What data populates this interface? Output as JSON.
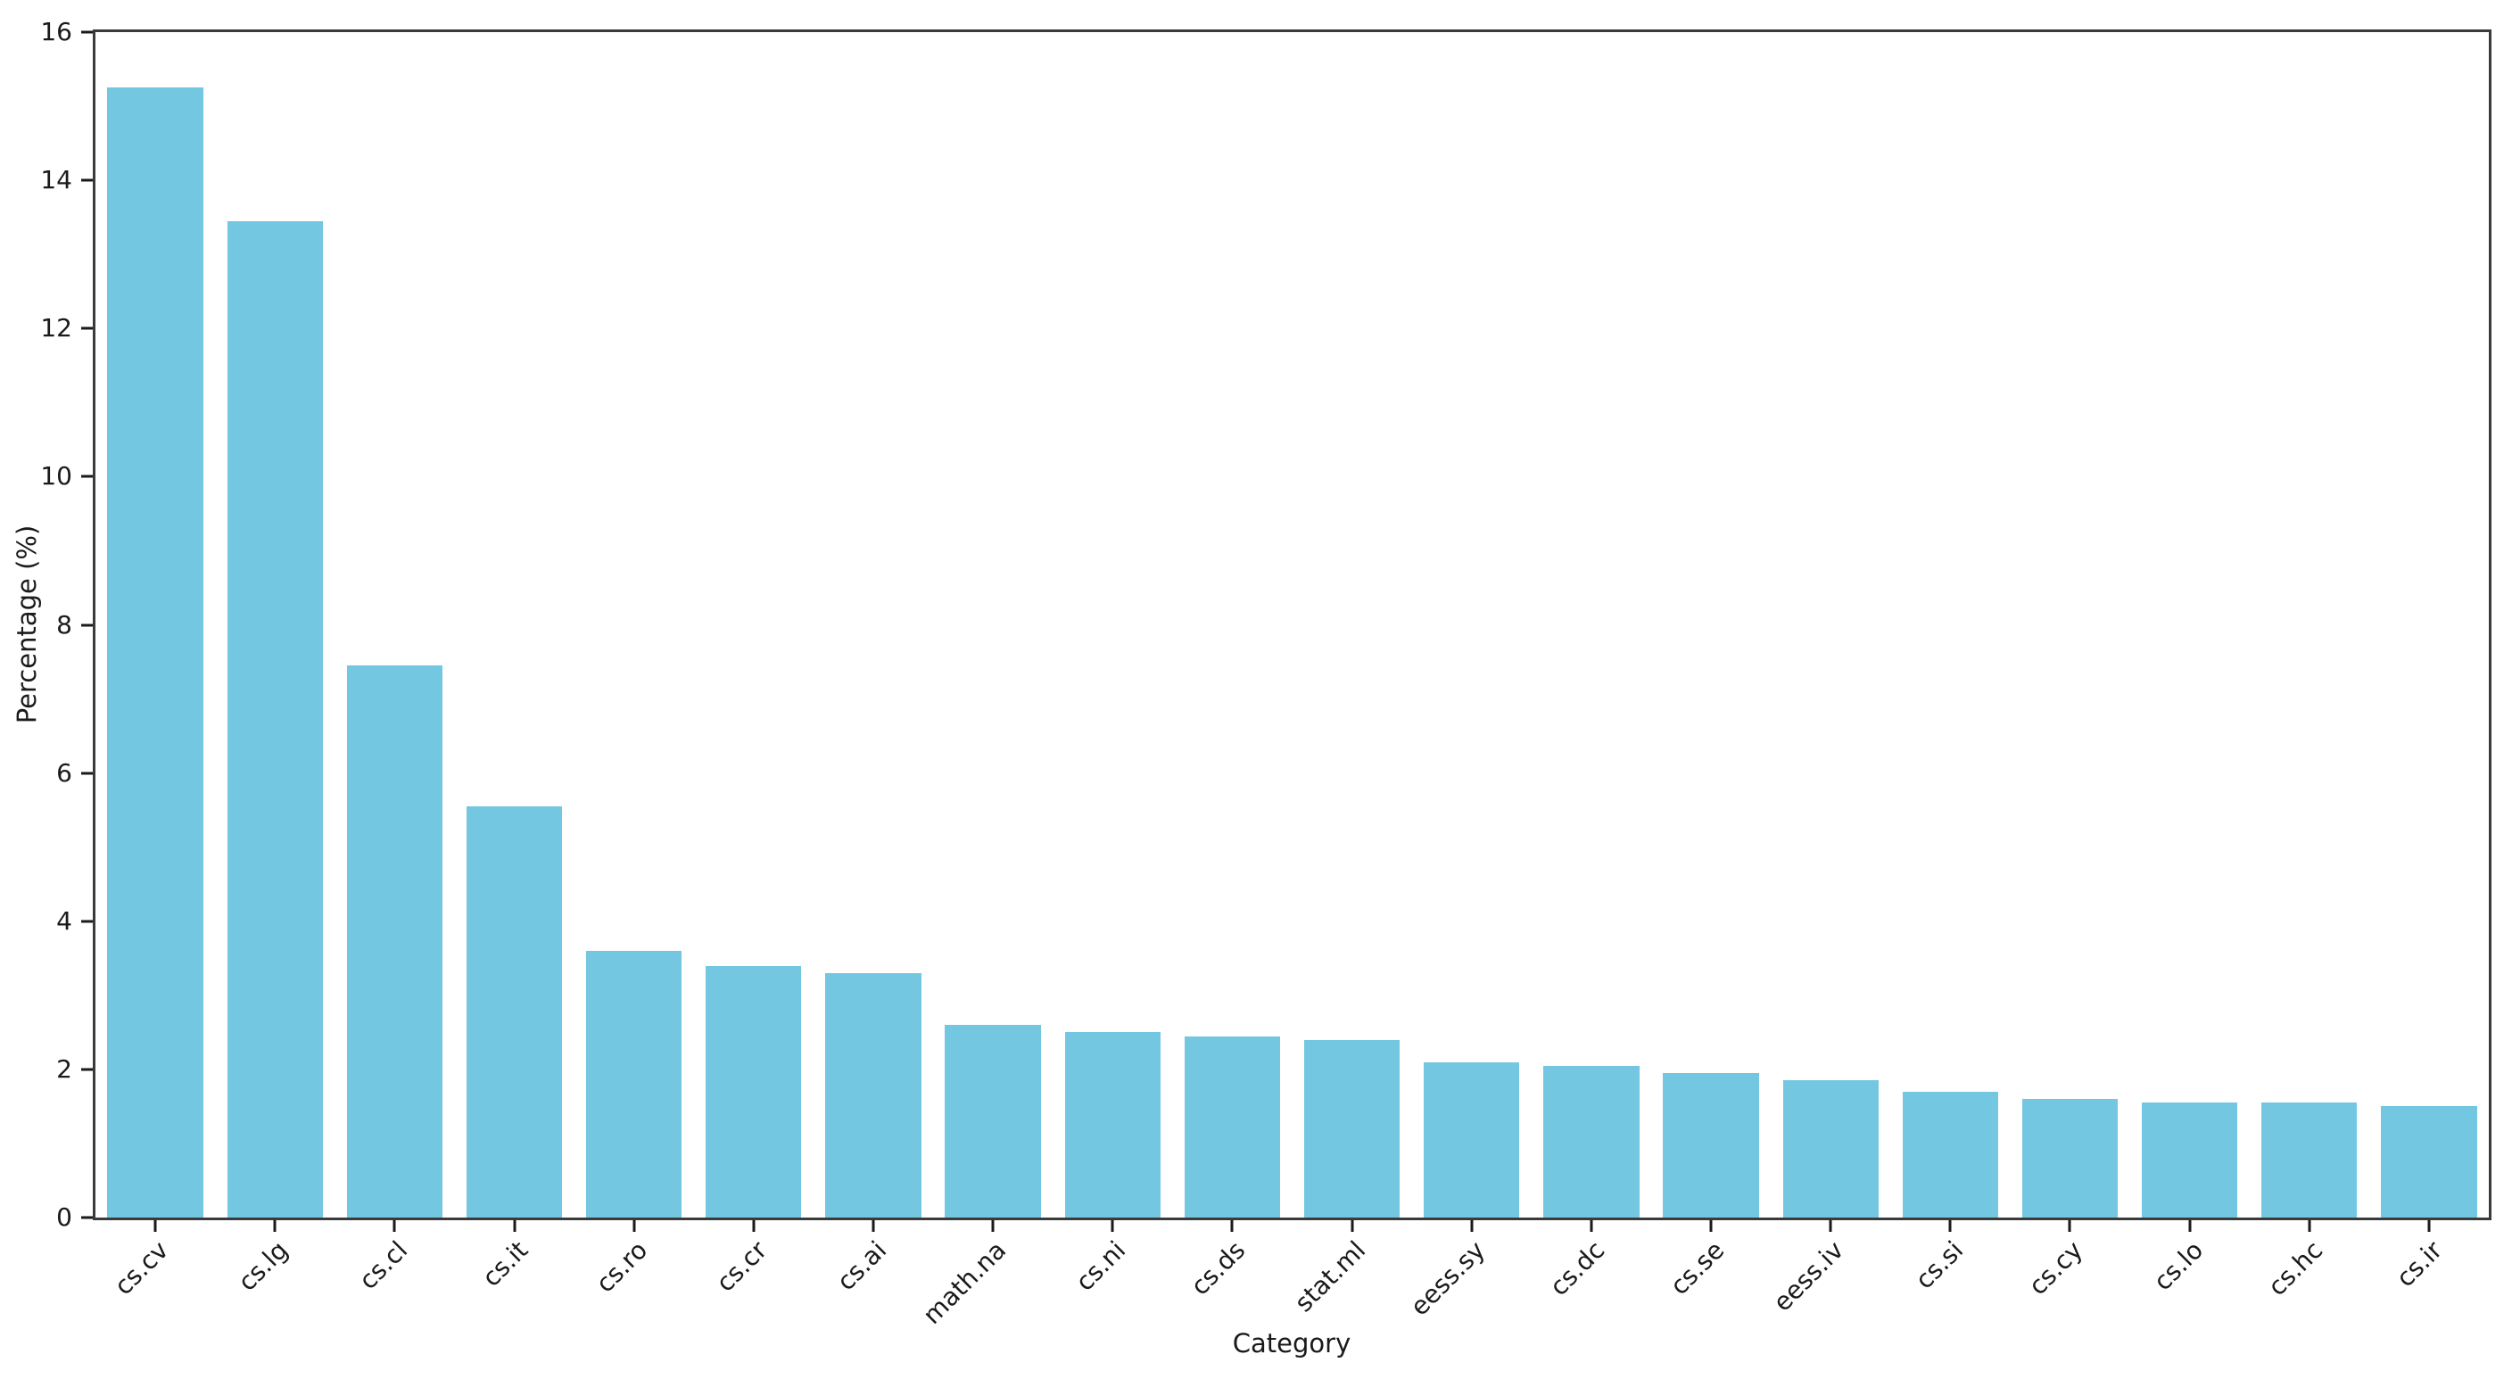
{
  "chart_data": {
    "type": "bar",
    "title": "",
    "xlabel": "Category",
    "ylabel": "Percentage (%)",
    "categories": [
      "cs.cv",
      "cs.lg",
      "cs.cl",
      "cs.it",
      "cs.ro",
      "cs.cr",
      "cs.ai",
      "math.na",
      "cs.ni",
      "cs.ds",
      "stat.ml",
      "eess.sy",
      "cs.dc",
      "cs.se",
      "eess.iv",
      "cs.si",
      "cs.cy",
      "cs.lo",
      "cs.hc",
      "cs.ir"
    ],
    "values": [
      15.25,
      13.45,
      7.45,
      5.55,
      3.6,
      3.4,
      3.3,
      2.6,
      2.5,
      2.45,
      2.4,
      2.1,
      2.05,
      1.95,
      1.85,
      1.7,
      1.6,
      1.55,
      1.55,
      1.5
    ],
    "ylim": [
      0,
      16
    ],
    "yticks": [
      0,
      2,
      4,
      6,
      8,
      10,
      12,
      14,
      16
    ],
    "xtick_rotation_deg": 45,
    "bar_color": "#74c7e0",
    "axis_color": "#3a3a3a",
    "text_color": "#1a1a1a",
    "grid": false,
    "legend": null,
    "bar_width_fraction": 0.8
  }
}
